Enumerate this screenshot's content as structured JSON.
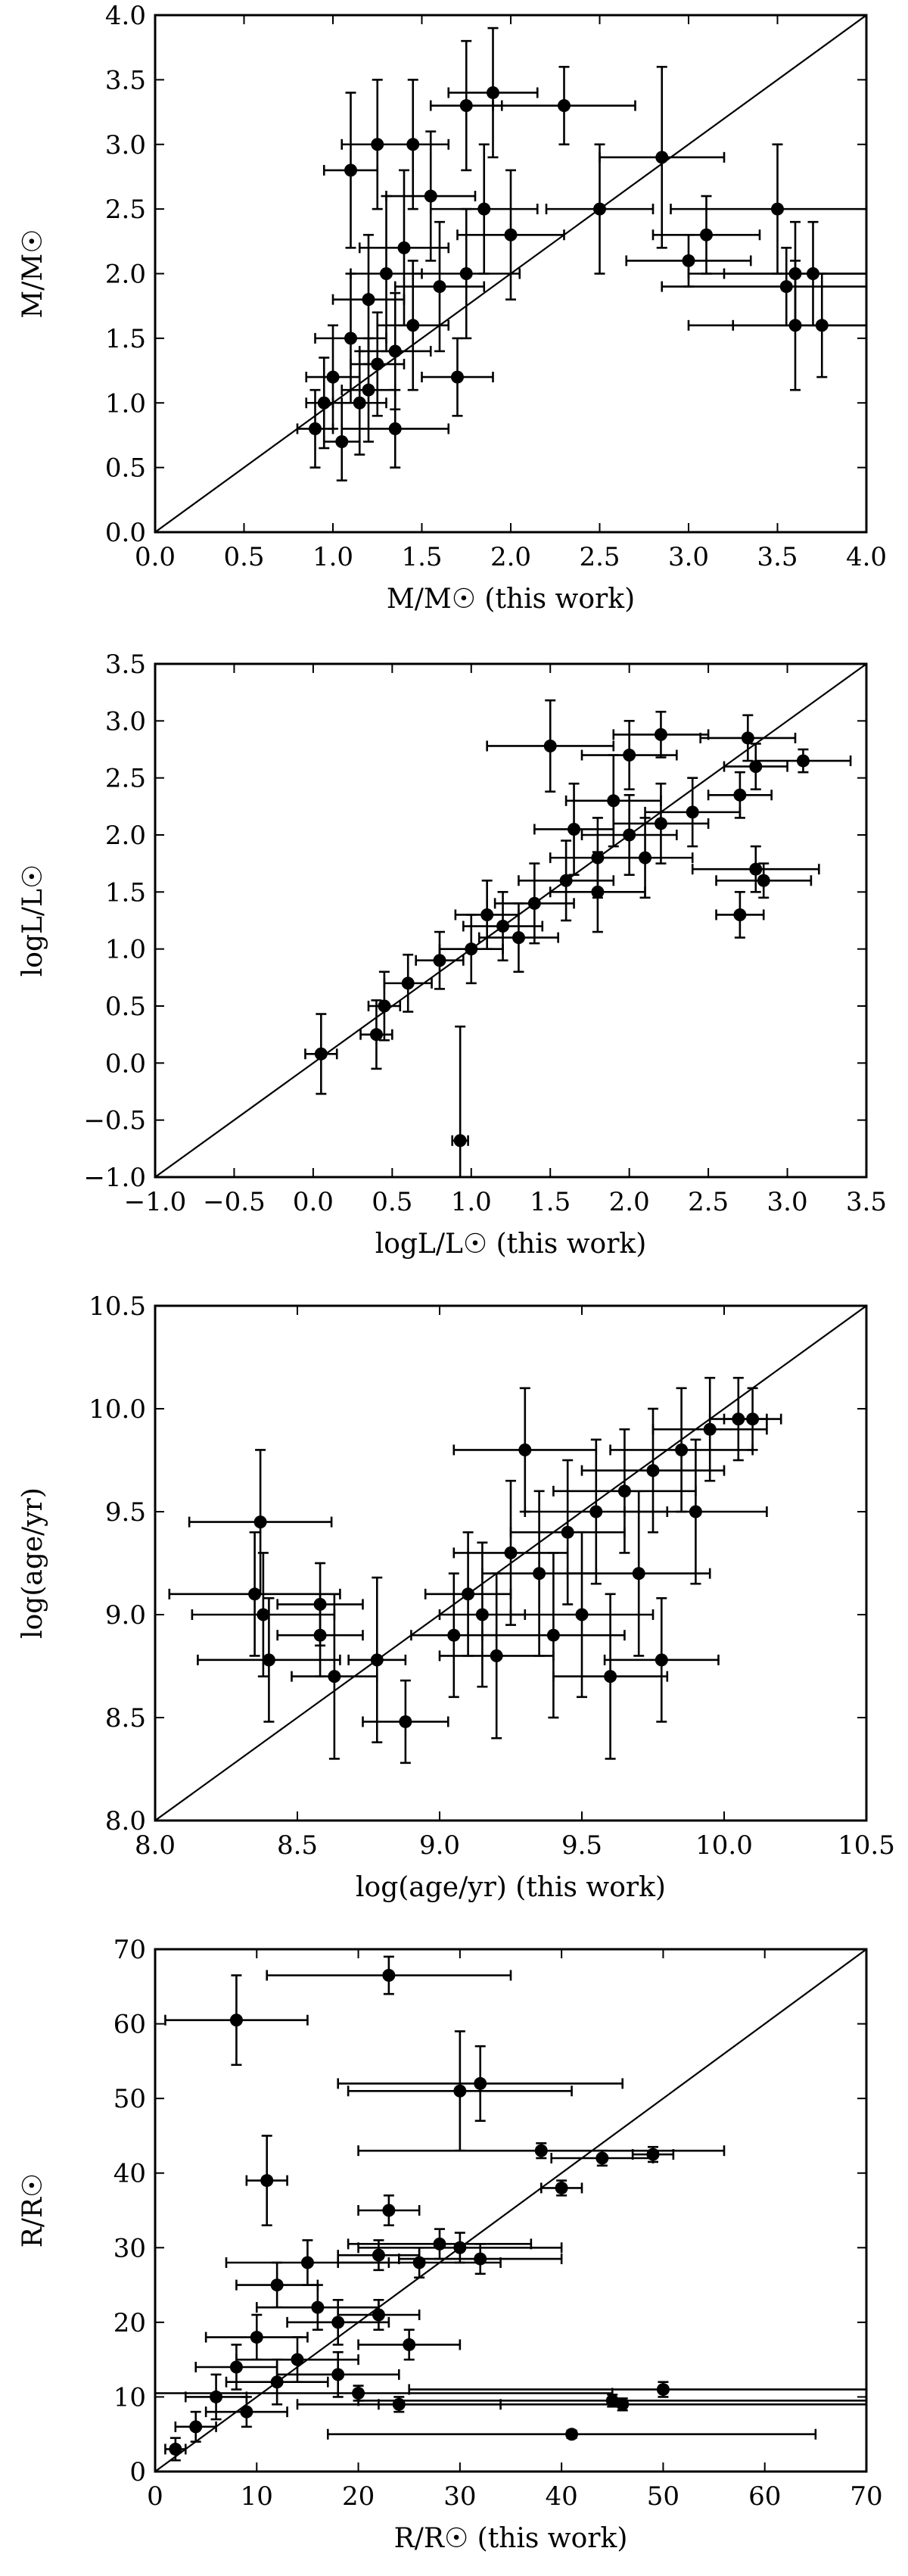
{
  "chart_data": [
    {
      "type": "scatter",
      "id": "mass",
      "xlabel": "M/M☉ (this work)",
      "ylabel": "M/M☉",
      "xlim": [
        0,
        4
      ],
      "ylim": [
        0,
        4
      ],
      "xticks": [
        "0.0",
        "0.5",
        "1.0",
        "1.5",
        "2.0",
        "2.5",
        "3.0",
        "3.5",
        "4.0"
      ],
      "yticks": [
        "0.0",
        "0.5",
        "1.0",
        "1.5",
        "2.0",
        "2.5",
        "3.0",
        "3.5",
        "4.0"
      ],
      "grid": false,
      "one_to_one_line": true,
      "points": [
        {
          "x": 1.1,
          "y": 2.8,
          "xerr": 0.15,
          "yerr": 0.6
        },
        {
          "x": 1.25,
          "y": 3.0,
          "xerr": 0.2,
          "yerr": 0.5
        },
        {
          "x": 1.45,
          "y": 3.0,
          "xerr": 0.2,
          "yerr": 0.5
        },
        {
          "x": 1.75,
          "y": 3.3,
          "xerr": 0.2,
          "yerr": 0.5
        },
        {
          "x": 1.9,
          "y": 3.4,
          "xerr": 0.25,
          "yerr": 0.5
        },
        {
          "x": 2.3,
          "y": 3.3,
          "xerr": 0.4,
          "yerr": 0.3
        },
        {
          "x": 1.55,
          "y": 2.6,
          "xerr": 0.25,
          "yerr": 0.5
        },
        {
          "x": 1.85,
          "y": 2.5,
          "xerr": 0.3,
          "yerr": 0.5
        },
        {
          "x": 2.0,
          "y": 2.3,
          "xerr": 0.3,
          "yerr": 0.5
        },
        {
          "x": 2.5,
          "y": 2.5,
          "xerr": 0.3,
          "yerr": 0.5
        },
        {
          "x": 2.85,
          "y": 2.9,
          "xerr": 0.35,
          "yerr": 0.7
        },
        {
          "x": 3.0,
          "y": 2.1,
          "xerr": 0.35,
          "yerr": 0.2
        },
        {
          "x": 3.1,
          "y": 2.3,
          "xerr": 0.3,
          "yerr": 0.3
        },
        {
          "x": 3.5,
          "y": 2.5,
          "xerr": 0.6,
          "yerr": 0.5
        },
        {
          "x": 3.55,
          "y": 1.9,
          "xerr": 0.7,
          "yerr": 0.3
        },
        {
          "x": 3.6,
          "y": 2.0,
          "xerr": 0.6,
          "yerr": 0.4
        },
        {
          "x": 3.6,
          "y": 1.6,
          "xerr": 0.6,
          "yerr": 0.5
        },
        {
          "x": 3.7,
          "y": 2.0,
          "xerr": 0.5,
          "yerr": 0.4
        },
        {
          "x": 3.75,
          "y": 1.6,
          "xerr": 0.5,
          "yerr": 0.4
        },
        {
          "x": 1.7,
          "y": 1.2,
          "xerr": 0.2,
          "yerr": 0.3
        },
        {
          "x": 1.35,
          "y": 0.8,
          "xerr": 0.3,
          "yerr": 0.3
        },
        {
          "x": 0.9,
          "y": 0.8,
          "xerr": 0.1,
          "yerr": 0.3
        },
        {
          "x": 1.0,
          "y": 1.2,
          "xerr": 0.15,
          "yerr": 0.4
        },
        {
          "x": 1.1,
          "y": 1.5,
          "xerr": 0.2,
          "yerr": 0.5
        },
        {
          "x": 1.2,
          "y": 1.8,
          "xerr": 0.2,
          "yerr": 0.5
        },
        {
          "x": 1.3,
          "y": 2.0,
          "xerr": 0.2,
          "yerr": 0.6
        },
        {
          "x": 1.4,
          "y": 2.2,
          "xerr": 0.25,
          "yerr": 0.6
        },
        {
          "x": 1.6,
          "y": 1.9,
          "xerr": 0.25,
          "yerr": 0.5
        },
        {
          "x": 1.75,
          "y": 2.0,
          "xerr": 0.3,
          "yerr": 0.5
        },
        {
          "x": 1.15,
          "y": 1.0,
          "xerr": 0.15,
          "yerr": 0.4
        },
        {
          "x": 1.05,
          "y": 0.7,
          "xerr": 0.1,
          "yerr": 0.3
        },
        {
          "x": 1.25,
          "y": 1.3,
          "xerr": 0.15,
          "yerr": 0.4
        },
        {
          "x": 1.45,
          "y": 1.6,
          "xerr": 0.2,
          "yerr": 0.5
        },
        {
          "x": 0.95,
          "y": 1.0,
          "xerr": 0.1,
          "yerr": 0.35
        },
        {
          "x": 1.2,
          "y": 1.1,
          "xerr": 0.15,
          "yerr": 0.4
        },
        {
          "x": 1.35,
          "y": 1.4,
          "xerr": 0.2,
          "yerr": 0.45
        }
      ]
    },
    {
      "type": "scatter",
      "id": "luminosity",
      "xlabel": "logL/L☉ (this work)",
      "ylabel": "logL/L☉",
      "xlim": [
        -1,
        3.5
      ],
      "ylim": [
        -1,
        3.5
      ],
      "xticks": [
        "−1.0",
        "−0.5",
        "0.0",
        "0.5",
        "1.0",
        "1.5",
        "2.0",
        "2.5",
        "3.0",
        "3.5"
      ],
      "yticks": [
        "−1.0",
        "−0.5",
        "0.0",
        "0.5",
        "1.0",
        "1.5",
        "2.0",
        "2.5",
        "3.0",
        "3.5"
      ],
      "grid": false,
      "one_to_one_line": true,
      "points": [
        {
          "x": 0.05,
          "y": 0.08,
          "xerr": 0.1,
          "yerr": 0.35
        },
        {
          "x": 0.93,
          "y": -0.68,
          "xerr": 0.05,
          "yerr": 1.0
        },
        {
          "x": 0.4,
          "y": 0.25,
          "xerr": 0.1,
          "yerr": 0.3
        },
        {
          "x": 0.45,
          "y": 0.5,
          "xerr": 0.1,
          "yerr": 0.3
        },
        {
          "x": 0.6,
          "y": 0.7,
          "xerr": 0.15,
          "yerr": 0.25
        },
        {
          "x": 0.8,
          "y": 0.9,
          "xerr": 0.15,
          "yerr": 0.25
        },
        {
          "x": 1.0,
          "y": 1.0,
          "xerr": 0.2,
          "yerr": 0.3
        },
        {
          "x": 1.2,
          "y": 1.2,
          "xerr": 0.25,
          "yerr": 0.3
        },
        {
          "x": 1.4,
          "y": 1.4,
          "xerr": 0.25,
          "yerr": 0.35
        },
        {
          "x": 1.6,
          "y": 1.6,
          "xerr": 0.3,
          "yerr": 0.35
        },
        {
          "x": 1.8,
          "y": 1.8,
          "xerr": 0.3,
          "yerr": 0.35
        },
        {
          "x": 2.0,
          "y": 2.0,
          "xerr": 0.3,
          "yerr": 0.35
        },
        {
          "x": 2.2,
          "y": 2.1,
          "xerr": 0.3,
          "yerr": 0.35
        },
        {
          "x": 2.4,
          "y": 2.2,
          "xerr": 0.3,
          "yerr": 0.3
        },
        {
          "x": 1.5,
          "y": 2.78,
          "xerr": 0.4,
          "yerr": 0.4
        },
        {
          "x": 1.65,
          "y": 2.05,
          "xerr": 0.25,
          "yerr": 0.4
        },
        {
          "x": 2.0,
          "y": 2.7,
          "xerr": 0.3,
          "yerr": 0.3
        },
        {
          "x": 2.2,
          "y": 2.88,
          "xerr": 0.3,
          "yerr": 0.2
        },
        {
          "x": 2.75,
          "y": 2.85,
          "xerr": 0.3,
          "yerr": 0.2
        },
        {
          "x": 3.1,
          "y": 2.65,
          "xerr": 0.3,
          "yerr": 0.1
        },
        {
          "x": 2.8,
          "y": 2.6,
          "xerr": 0.2,
          "yerr": 0.2
        },
        {
          "x": 2.7,
          "y": 2.35,
          "xerr": 0.2,
          "yerr": 0.2
        },
        {
          "x": 2.85,
          "y": 1.6,
          "xerr": 0.3,
          "yerr": 0.15
        },
        {
          "x": 2.8,
          "y": 1.7,
          "xerr": 0.4,
          "yerr": 0.2
        },
        {
          "x": 2.7,
          "y": 1.3,
          "xerr": 0.15,
          "yerr": 0.2
        },
        {
          "x": 1.8,
          "y": 1.5,
          "xerr": 0.3,
          "yerr": 0.35
        },
        {
          "x": 1.3,
          "y": 1.1,
          "xerr": 0.25,
          "yerr": 0.3
        },
        {
          "x": 1.9,
          "y": 2.3,
          "xerr": 0.3,
          "yerr": 0.4
        },
        {
          "x": 2.1,
          "y": 1.8,
          "xerr": 0.3,
          "yerr": 0.35
        },
        {
          "x": 1.1,
          "y": 1.3,
          "xerr": 0.2,
          "yerr": 0.3
        }
      ]
    },
    {
      "type": "scatter",
      "id": "age",
      "xlabel": "log(age/yr) (this work)",
      "ylabel": "log(age/yr)",
      "xlim": [
        8,
        10.5
      ],
      "ylim": [
        8,
        10.5
      ],
      "xticks": [
        "8.0",
        "8.5",
        "9.0",
        "9.5",
        "10.0",
        "10.5"
      ],
      "yticks": [
        "8.0",
        "8.5",
        "9.0",
        "9.5",
        "10.0",
        "10.5"
      ],
      "grid": false,
      "one_to_one_line": true,
      "points": [
        {
          "x": 8.37,
          "y": 9.45,
          "xerr": 0.25,
          "yerr": 0.35
        },
        {
          "x": 8.35,
          "y": 9.1,
          "xerr": 0.3,
          "yerr": 0.3
        },
        {
          "x": 8.38,
          "y": 9.0,
          "xerr": 0.25,
          "yerr": 0.3
        },
        {
          "x": 8.4,
          "y": 8.78,
          "xerr": 0.25,
          "yerr": 0.3
        },
        {
          "x": 8.58,
          "y": 9.05,
          "xerr": 0.15,
          "yerr": 0.2
        },
        {
          "x": 8.58,
          "y": 8.9,
          "xerr": 0.15,
          "yerr": 0.2
        },
        {
          "x": 8.63,
          "y": 8.7,
          "xerr": 0.15,
          "yerr": 0.4
        },
        {
          "x": 8.78,
          "y": 8.78,
          "xerr": 0.1,
          "yerr": 0.4
        },
        {
          "x": 8.88,
          "y": 8.48,
          "xerr": 0.15,
          "yerr": 0.2
        },
        {
          "x": 9.05,
          "y": 8.9,
          "xerr": 0.15,
          "yerr": 0.3
        },
        {
          "x": 9.15,
          "y": 9.0,
          "xerr": 0.15,
          "yerr": 0.35
        },
        {
          "x": 9.2,
          "y": 8.8,
          "xerr": 0.2,
          "yerr": 0.4
        },
        {
          "x": 9.3,
          "y": 9.8,
          "xerr": 0.25,
          "yerr": 0.3
        },
        {
          "x": 9.35,
          "y": 9.2,
          "xerr": 0.2,
          "yerr": 0.4
        },
        {
          "x": 9.45,
          "y": 9.4,
          "xerr": 0.2,
          "yerr": 0.35
        },
        {
          "x": 9.55,
          "y": 9.5,
          "xerr": 0.25,
          "yerr": 0.35
        },
        {
          "x": 9.6,
          "y": 8.7,
          "xerr": 0.2,
          "yerr": 0.4
        },
        {
          "x": 9.65,
          "y": 9.6,
          "xerr": 0.25,
          "yerr": 0.3
        },
        {
          "x": 9.75,
          "y": 9.7,
          "xerr": 0.25,
          "yerr": 0.3
        },
        {
          "x": 9.78,
          "y": 8.78,
          "xerr": 0.2,
          "yerr": 0.3
        },
        {
          "x": 9.85,
          "y": 9.8,
          "xerr": 0.25,
          "yerr": 0.3
        },
        {
          "x": 9.95,
          "y": 9.9,
          "xerr": 0.2,
          "yerr": 0.25
        },
        {
          "x": 10.05,
          "y": 9.95,
          "xerr": 0.1,
          "yerr": 0.2
        },
        {
          "x": 10.1,
          "y": 9.95,
          "xerr": 0.1,
          "yerr": 0.15
        },
        {
          "x": 9.5,
          "y": 9.0,
          "xerr": 0.25,
          "yerr": 0.4
        },
        {
          "x": 9.4,
          "y": 8.9,
          "xerr": 0.25,
          "yerr": 0.4
        },
        {
          "x": 9.7,
          "y": 9.2,
          "xerr": 0.25,
          "yerr": 0.4
        },
        {
          "x": 9.9,
          "y": 9.5,
          "xerr": 0.25,
          "yerr": 0.35
        },
        {
          "x": 9.1,
          "y": 9.1,
          "xerr": 0.15,
          "yerr": 0.3
        },
        {
          "x": 9.25,
          "y": 9.3,
          "xerr": 0.2,
          "yerr": 0.35
        }
      ]
    },
    {
      "type": "scatter",
      "id": "radius",
      "xlabel": "R/R☉ (this work)",
      "ylabel": "R/R☉",
      "xlim": [
        0,
        70
      ],
      "ylim": [
        0,
        70
      ],
      "xticks": [
        "0",
        "10",
        "20",
        "30",
        "40",
        "50",
        "60",
        "70"
      ],
      "yticks": [
        "0",
        "10",
        "20",
        "30",
        "40",
        "50",
        "60",
        "70"
      ],
      "grid": false,
      "one_to_one_line": true,
      "points": [
        {
          "x": 8,
          "y": 60.5,
          "xerr": 7,
          "yerr": 6
        },
        {
          "x": 23,
          "y": 66.5,
          "xerr": 12,
          "yerr": 2.5
        },
        {
          "x": 30,
          "y": 51,
          "xerr": 11,
          "yerr": 8
        },
        {
          "x": 32,
          "y": 52,
          "xerr": 14,
          "yerr": 5
        },
        {
          "x": 11,
          "y": 39,
          "xerr": 2,
          "yerr": 6
        },
        {
          "x": 38,
          "y": 43,
          "xerr": 18,
          "yerr": 1
        },
        {
          "x": 44,
          "y": 42,
          "xerr": 5,
          "yerr": 1
        },
        {
          "x": 49,
          "y": 42.5,
          "xerr": 2,
          "yerr": 1
        },
        {
          "x": 40,
          "y": 38,
          "xerr": 2,
          "yerr": 1
        },
        {
          "x": 23,
          "y": 35,
          "xerr": 3,
          "yerr": 2
        },
        {
          "x": 28,
          "y": 30.5,
          "xerr": 9,
          "yerr": 2
        },
        {
          "x": 30,
          "y": 30,
          "xerr": 10,
          "yerr": 2
        },
        {
          "x": 32,
          "y": 28.5,
          "xerr": 8,
          "yerr": 2
        },
        {
          "x": 26,
          "y": 28,
          "xerr": 8,
          "yerr": 2
        },
        {
          "x": 22,
          "y": 29,
          "xerr": 4,
          "yerr": 2
        },
        {
          "x": 15,
          "y": 28,
          "xerr": 8,
          "yerr": 3
        },
        {
          "x": 12,
          "y": 25,
          "xerr": 4,
          "yerr": 3
        },
        {
          "x": 16,
          "y": 22,
          "xerr": 6,
          "yerr": 3
        },
        {
          "x": 18,
          "y": 20,
          "xerr": 5,
          "yerr": 3
        },
        {
          "x": 22,
          "y": 21,
          "xerr": 4,
          "yerr": 2
        },
        {
          "x": 25,
          "y": 17,
          "xerr": 5,
          "yerr": 2
        },
        {
          "x": 10,
          "y": 18,
          "xerr": 5,
          "yerr": 3
        },
        {
          "x": 8,
          "y": 14,
          "xerr": 4,
          "yerr": 3
        },
        {
          "x": 6,
          "y": 10,
          "xerr": 3,
          "yerr": 3
        },
        {
          "x": 4,
          "y": 6,
          "xerr": 2,
          "yerr": 2
        },
        {
          "x": 2,
          "y": 3,
          "xerr": 1,
          "yerr": 1.5
        },
        {
          "x": 12,
          "y": 12,
          "xerr": 5,
          "yerr": 3
        },
        {
          "x": 14,
          "y": 15,
          "xerr": 6,
          "yerr": 3
        },
        {
          "x": 18,
          "y": 13,
          "xerr": 6,
          "yerr": 3
        },
        {
          "x": 24,
          "y": 9,
          "xerr": 10,
          "yerr": 1
        },
        {
          "x": 41,
          "y": 5,
          "xerr": 24,
          "yerr": 0.5
        },
        {
          "x": 45,
          "y": 9.5,
          "xerr": 25,
          "yerr": 0.8
        },
        {
          "x": 46,
          "y": 9,
          "xerr": 24,
          "yerr": 0.8
        },
        {
          "x": 50,
          "y": 11,
          "xerr": 25,
          "yerr": 1
        },
        {
          "x": 20,
          "y": 10.5,
          "xerr": 25,
          "yerr": 1
        },
        {
          "x": 9,
          "y": 8,
          "xerr": 4,
          "yerr": 2
        }
      ]
    }
  ]
}
